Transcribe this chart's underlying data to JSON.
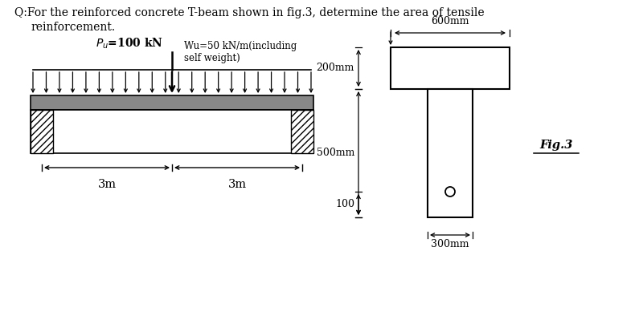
{
  "bg_color": "#ffffff",
  "title_line1": "Q:For the reinforced concrete T-beam shown in fig.3, determine the area of tensile",
  "title_line2": "reinforcement.",
  "Pu_label": "$P_u$=100 kN",
  "wu_label": "Wu=50 kN/m(including\nself weight)",
  "span_left": "3m",
  "span_right": "3m",
  "fig_label": "Fig.3",
  "dim_600": "600mm",
  "dim_200": "200mm",
  "dim_500": "500mm",
  "dim_100": "100",
  "dim_300": "300mm",
  "slab_color": "#888888",
  "n_load_arrows": 22
}
